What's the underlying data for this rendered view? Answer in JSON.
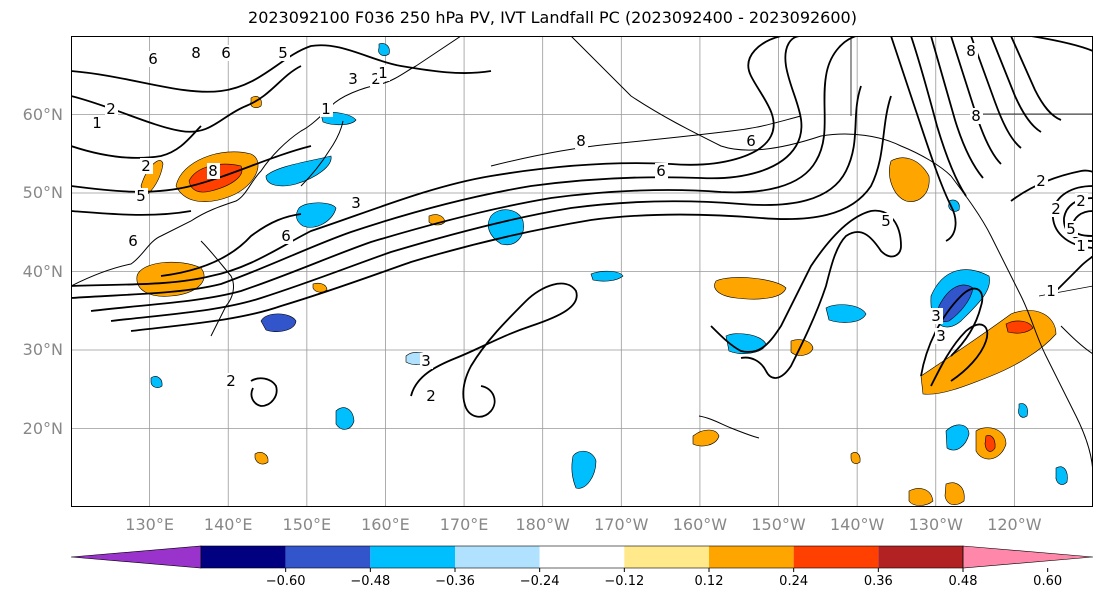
{
  "title": "2023092100 F036 250 hPa PV, IVT Landfall PC (2023092400 - 2023092600)",
  "map": {
    "lat_labels": [
      "60°N",
      "50°N",
      "40°N",
      "30°N",
      "20°N"
    ],
    "lat_values": [
      60,
      50,
      40,
      30,
      20
    ],
    "lon_labels": [
      "130°E",
      "140°E",
      "150°E",
      "160°E",
      "170°E",
      "180°W",
      "170°W",
      "160°W",
      "150°W",
      "140°W",
      "130°W",
      "120°W"
    ],
    "lon_values": [
      130,
      140,
      150,
      160,
      170,
      180,
      190,
      200,
      210,
      220,
      230,
      240
    ],
    "lat_range": [
      10,
      70
    ],
    "lon_range": [
      120,
      250
    ],
    "contour_labels": [
      "6",
      "8",
      "6",
      "5",
      "3",
      "1",
      "2",
      "8",
      "6",
      "6",
      "2",
      "1",
      "5",
      "3",
      "2",
      "1",
      "8",
      "6",
      "6",
      "5",
      "8",
      "3",
      "3",
      "2",
      "3",
      "2",
      "1",
      "2",
      "2",
      "5",
      "2",
      "8",
      "1"
    ]
  },
  "colorbar": {
    "tick_labels": [
      "−0.60",
      "−0.48",
      "−0.36",
      "−0.24",
      "−0.12",
      "0.12",
      "0.24",
      "0.36",
      "0.48",
      "0.60"
    ],
    "colors": [
      "#9933cc",
      "#000080",
      "#3355cc",
      "#00bfff",
      "#b0e2ff",
      "#ffffff",
      "#ffe98a",
      "#ffa500",
      "#ff4000",
      "#b22222",
      "#ff88aa"
    ]
  }
}
